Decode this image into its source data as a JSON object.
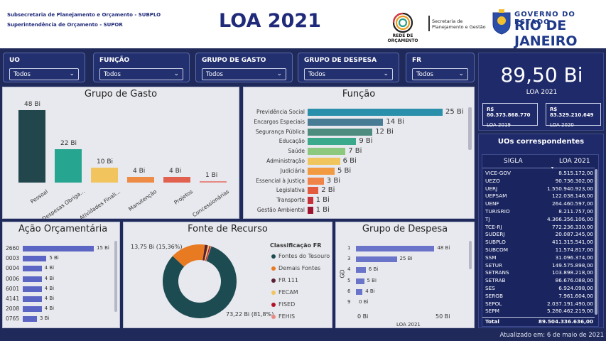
{
  "header": {
    "org_line1": "Subsecretaria de Planejamento e Orçamento - SUBPLO",
    "org_line2": "Superintendência de Orçamento - SUPOR",
    "title": "LOA 2021",
    "rede_label": "REDE DE ORÇAMENTO",
    "sec_line1": "Secretaria de",
    "sec_line2": "Planejamento e Gestão",
    "gov_line1": "GOVERNO DO ESTADO",
    "gov_line2": "RIO DE JANEIRO"
  },
  "filters": [
    {
      "label": "UO",
      "value": "Todos"
    },
    {
      "label": "FUNÇÃO",
      "value": "Todos"
    },
    {
      "label": "GRUPO DE GASTO",
      "value": "Todos"
    },
    {
      "label": "GRUPO DE DESPESA",
      "value": "Todos"
    },
    {
      "label": "FR",
      "value": "Todos"
    }
  ],
  "kpi": {
    "value": "89,50 Bi",
    "label": "LOA 2021",
    "loa2019_value": "R$ 80.373.868.770",
    "loa2019_label": "LOA 2019",
    "loa2020_value": "R$ 83.329.210.649",
    "loa2020_label": "LOA 2020"
  },
  "grupo_gasto": {
    "title": "Grupo de Gasto",
    "bars": [
      {
        "cat": "Pessoal",
        "label": "48 Bi",
        "value": 48,
        "color": "#21474c"
      },
      {
        "cat": "Despesas Obriga...",
        "label": "22 Bi",
        "value": 22,
        "color": "#26a690"
      },
      {
        "cat": "Atividades Finali...",
        "label": "10 Bi",
        "value": 10,
        "color": "#f2c45e"
      },
      {
        "cat": "Manutenção",
        "label": "4 Bi",
        "value": 4,
        "color": "#ee8c46"
      },
      {
        "cat": "Projetos",
        "label": "4 Bi",
        "value": 4,
        "color": "#e2604e"
      },
      {
        "cat": "Concessionárias",
        "label": "1 Bi",
        "value": 1,
        "color": "#e78a82"
      }
    ]
  },
  "funcao": {
    "title": "Função",
    "bars": [
      {
        "cat": "Previdência Social",
        "label": "25 Bi",
        "value": 25,
        "color": "#2a8fab"
      },
      {
        "cat": "Encargos Especiais",
        "label": "14 Bi",
        "value": 14,
        "color": "#487c94"
      },
      {
        "cat": "Segurança Pública",
        "label": "12 Bi",
        "value": 12,
        "color": "#4e8c80"
      },
      {
        "cat": "Educação",
        "label": "9 Bi",
        "value": 9,
        "color": "#3aa98c"
      },
      {
        "cat": "Saúde",
        "label": "7 Bi",
        "value": 7,
        "color": "#8cc87d"
      },
      {
        "cat": "Administração",
        "label": "6 Bi",
        "value": 6,
        "color": "#f0c55d"
      },
      {
        "cat": "Judiciária",
        "label": "5 Bi",
        "value": 5,
        "color": "#f19a42"
      },
      {
        "cat": "Essencial à Justiça",
        "label": "3 Bi",
        "value": 3,
        "color": "#ef8348"
      },
      {
        "cat": "Legislativa",
        "label": "2 Bi",
        "value": 2,
        "color": "#e35a3e"
      },
      {
        "cat": "Transporte",
        "label": "1 Bi",
        "value": 1,
        "color": "#c73139"
      },
      {
        "cat": "Gestão Ambiental",
        "label": "1 Bi",
        "value": 1,
        "color": "#9e1530"
      }
    ]
  },
  "acao": {
    "title": "Ação Orçamentária",
    "bars": [
      {
        "cat": "2660",
        "label": "15 Bi",
        "value": 15
      },
      {
        "cat": "0003",
        "label": "5 Bi",
        "value": 5
      },
      {
        "cat": "0004",
        "label": "4 Bi",
        "value": 4
      },
      {
        "cat": "0006",
        "label": "4 Bi",
        "value": 4
      },
      {
        "cat": "6001",
        "label": "4 Bi",
        "value": 4
      },
      {
        "cat": "4141",
        "label": "4 Bi",
        "value": 4
      },
      {
        "cat": "2008",
        "label": "4 Bi",
        "value": 4
      },
      {
        "cat": "0765",
        "label": "3 Bi",
        "value": 3
      }
    ]
  },
  "fonte": {
    "title": "Fonte de Recurso",
    "legend_title": "Classificação FR",
    "small_label": "13,75 Bi (15,36%)",
    "big_label": "73,22 Bi (81,8%)",
    "legend": [
      {
        "name": "Fontes do Tesouro",
        "color": "#1d4b52"
      },
      {
        "name": "Demais Fontes",
        "color": "#e87a22"
      },
      {
        "name": "FR 111",
        "color": "#5a2033"
      },
      {
        "name": "FECAM",
        "color": "#f2c45e"
      },
      {
        "name": "FISED",
        "color": "#b3112c"
      },
      {
        "name": "FEHIS",
        "color": "#e78a82"
      }
    ],
    "slices": [
      81.8,
      15.36,
      1.3,
      0.7,
      0.5,
      0.34
    ]
  },
  "despesa": {
    "title": "Grupo de Despesa",
    "ylabel": "GD",
    "xlabel": "LOA 2021",
    "tick0": "0 Bi",
    "tick50": "50 Bi",
    "bars": [
      {
        "cat": "1",
        "label": "48 Bi",
        "value": 48
      },
      {
        "cat": "3",
        "label": "25 Bi",
        "value": 25
      },
      {
        "cat": "4",
        "label": "6 Bi",
        "value": 6
      },
      {
        "cat": "5",
        "label": "5 Bi",
        "value": 5
      },
      {
        "cat": "6",
        "label": "4 Bi",
        "value": 4
      },
      {
        "cat": "9",
        "label": "0 Bi",
        "value": 0
      }
    ]
  },
  "uos": {
    "title": "UOs correspondentes",
    "col1": "SIGLA",
    "col2": "LOA 2021",
    "rows": [
      [
        "VICE-GOV",
        "8.515.172,00"
      ],
      [
        "UEZO",
        "90.736.302,00"
      ],
      [
        "UERJ",
        "1.550.940.923,00"
      ],
      [
        "UEPSAM",
        "122.038.146,00"
      ],
      [
        "UENF",
        "264.460.597,00"
      ],
      [
        "TURISRIO",
        "8.211.757,00"
      ],
      [
        "TJ",
        "4.366.356.106,00"
      ],
      [
        "TCE-RJ",
        "772.236.330,00"
      ],
      [
        "SUDERJ",
        "20.087.345,00"
      ],
      [
        "SUBPLO",
        "411.315.541,00"
      ],
      [
        "SUBCOM",
        "11.574.817,00"
      ],
      [
        "SSM",
        "31.096.374,00"
      ],
      [
        "SETUR",
        "149.575.898,00"
      ],
      [
        "SETRANS",
        "103.898.218,00"
      ],
      [
        "SETRAB",
        "86.676.088,00"
      ],
      [
        "SES",
        "6.924.098,00"
      ],
      [
        "SERGB",
        "7.961.604,00"
      ],
      [
        "SEPOL",
        "2.037.191.490,00"
      ],
      [
        "SEPM",
        "5.280.462.219,00"
      ]
    ],
    "total_label": "Total",
    "total_value": "89.504.336.636,00"
  },
  "updated": "Atualizado em: 6 de maio de 2021"
}
